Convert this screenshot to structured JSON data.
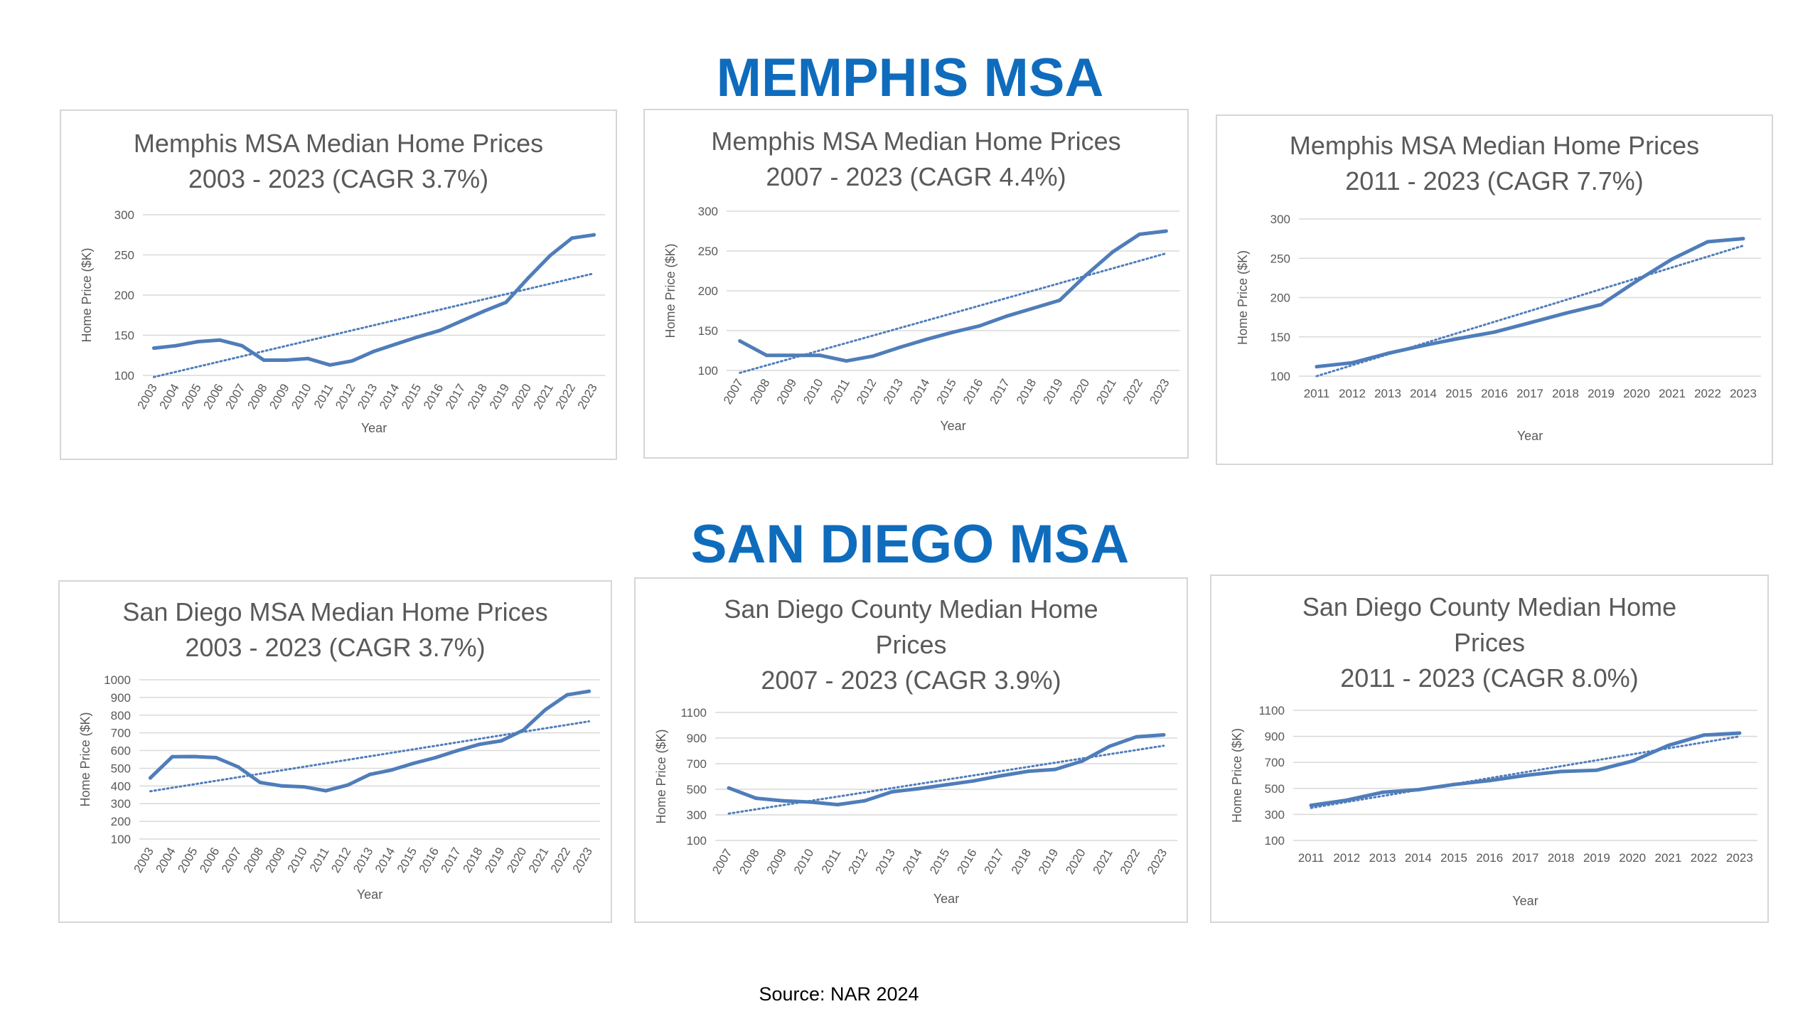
{
  "sections": {
    "memphis_title": "MEMPHIS MSA",
    "sandiego_title": "SAN DIEGO MSA"
  },
  "source": "Source: NAR 2024",
  "colors": {
    "series": "#4f7dba",
    "trend": "#4f7dba",
    "heading": "#0f6cbd",
    "grid": "#d9d9d9"
  },
  "chart_data": [
    {
      "type": "line",
      "title": [
        "Memphis MSA Median Home Prices",
        "2003 - 2023 (CAGR 3.7%)"
      ],
      "xlabel": "Year",
      "ylabel": "Home Price ($K)",
      "categories": [
        "2003",
        "2004",
        "2005",
        "2006",
        "2007",
        "2008",
        "2009",
        "2010",
        "2011",
        "2012",
        "2013",
        "2014",
        "2015",
        "2016",
        "2017",
        "2018",
        "2019",
        "2020",
        "2021",
        "2022",
        "2023"
      ],
      "values": [
        134,
        137,
        142,
        144,
        137,
        119,
        119,
        121,
        113,
        118,
        130,
        139,
        148,
        156,
        168,
        180,
        191,
        221,
        249,
        271,
        275
      ],
      "trend": [
        98,
        227
      ],
      "yticks": [
        "100",
        "150",
        "200",
        "250",
        "300"
      ],
      "ylim": [
        100,
        300
      ],
      "xrotate": true
    },
    {
      "type": "line",
      "title": [
        "Memphis MSA Median Home Prices",
        "2007 - 2023 (CAGR 4.4%)"
      ],
      "xlabel": "Year",
      "ylabel": "Home Price ($K)",
      "categories": [
        "2007",
        "2008",
        "2009",
        "2010",
        "2011",
        "2012",
        "2013",
        "2014",
        "2015",
        "2016",
        "2017",
        "2018",
        "2019",
        "2020",
        "2021",
        "2022",
        "2023"
      ],
      "values": [
        137,
        119,
        119,
        119,
        112,
        118,
        129,
        139,
        148,
        156,
        168,
        178,
        188,
        220,
        249,
        271,
        275
      ],
      "trend": [
        97,
        247
      ],
      "yticks": [
        "100",
        "150",
        "200",
        "250",
        "300"
      ],
      "ylim": [
        100,
        300
      ],
      "xrotate": true
    },
    {
      "type": "line",
      "title": [
        "Memphis MSA Median Home Prices",
        "2011 - 2023 (CAGR 7.7%)"
      ],
      "xlabel": "Year",
      "ylabel": "Home Price ($K)",
      "categories": [
        "2011",
        "2012",
        "2013",
        "2014",
        "2015",
        "2016",
        "2017",
        "2018",
        "2019",
        "2020",
        "2021",
        "2022",
        "2023"
      ],
      "values": [
        112,
        117,
        129,
        139,
        148,
        156,
        168,
        180,
        191,
        221,
        249,
        271,
        275
      ],
      "trend": [
        100,
        266
      ],
      "yticks": [
        "100",
        "150",
        "200",
        "250",
        "300"
      ],
      "ylim": [
        100,
        300
      ],
      "xrotate": false
    },
    {
      "type": "line",
      "title": [
        "San Diego MSA Median Home Prices",
        "2003 - 2023 (CAGR 3.7%)"
      ],
      "xlabel": "Year",
      "ylabel": "Home Price ($K)",
      "categories": [
        "2003",
        "2004",
        "2005",
        "2006",
        "2007",
        "2008",
        "2009",
        "2010",
        "2011",
        "2012",
        "2013",
        "2014",
        "2015",
        "2016",
        "2017",
        "2018",
        "2019",
        "2020",
        "2021",
        "2022",
        "2023"
      ],
      "values": [
        445,
        565,
        566,
        560,
        508,
        420,
        400,
        395,
        373,
        405,
        465,
        490,
        528,
        560,
        600,
        635,
        655,
        715,
        830,
        915,
        935
      ],
      "trend": [
        370,
        765
      ],
      "yticks": [
        "100",
        "200",
        "300",
        "400",
        "500",
        "600",
        "700",
        "800",
        "900",
        "1000"
      ],
      "ytick_labels_shown": [
        "100",
        "200",
        "300",
        "400",
        "500",
        "600",
        "700",
        "800",
        "900",
        "1000"
      ],
      "ylim": [
        100,
        1000
      ],
      "xrotate": true
    },
    {
      "type": "line",
      "title": [
        "San Diego County Median Home",
        "Prices",
        "2007 - 2023 (CAGR 3.9%)"
      ],
      "xlabel": "Year",
      "ylabel": "Home Price ($K)",
      "categories": [
        "2007",
        "2008",
        "2009",
        "2010",
        "2011",
        "2012",
        "2013",
        "2014",
        "2015",
        "2016",
        "2017",
        "2018",
        "2019",
        "2020",
        "2021",
        "2022",
        "2023"
      ],
      "values": [
        510,
        430,
        410,
        400,
        380,
        410,
        480,
        505,
        535,
        565,
        605,
        640,
        655,
        720,
        835,
        910,
        925
      ],
      "trend": [
        310,
        840
      ],
      "yticks": [
        "100",
        "300",
        "500",
        "700",
        "900",
        "1100"
      ],
      "ylim": [
        100,
        1100
      ],
      "xrotate": true
    },
    {
      "type": "line",
      "title": [
        "San Diego County Median Home",
        "Prices",
        "2011 - 2023 (CAGR 8.0%)"
      ],
      "xlabel": "Year",
      "ylabel": "Home Price ($K)",
      "categories": [
        "2011",
        "2012",
        "2013",
        "2014",
        "2015",
        "2016",
        "2017",
        "2018",
        "2019",
        "2020",
        "2021",
        "2022",
        "2023"
      ],
      "values": [
        370,
        410,
        470,
        490,
        530,
        560,
        600,
        630,
        640,
        710,
        830,
        910,
        925
      ],
      "trend": [
        350,
        900
      ],
      "yticks": [
        "100",
        "300",
        "500",
        "700",
        "900",
        "1100"
      ],
      "ylim": [
        100,
        1100
      ],
      "xrotate": false
    }
  ]
}
